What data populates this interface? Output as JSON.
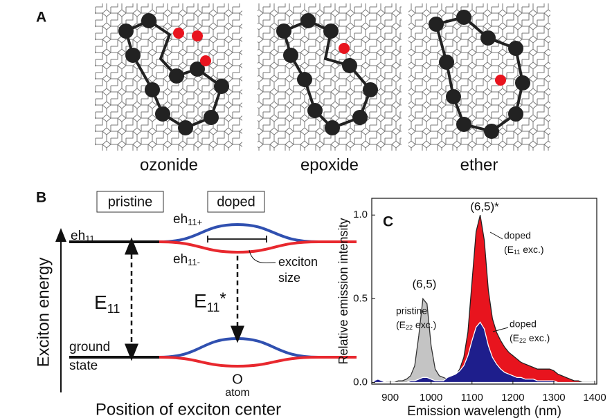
{
  "panel_a": {
    "label": "A",
    "captions": [
      "ozonide",
      "epoxide",
      "ether"
    ]
  },
  "panel_b": {
    "label": "B",
    "boxes": [
      "pristine",
      "doped"
    ],
    "y_axis_label": "Exciton energy",
    "x_axis_label": "Position of exciton center",
    "eh11": {
      "text": "eh",
      "sub": "11"
    },
    "eh11_plus": {
      "text": "eh",
      "sub": "11+"
    },
    "eh11_minus": {
      "text": "eh",
      "sub": "11-"
    },
    "exciton_size": [
      "exciton",
      "size"
    ],
    "e11": {
      "text": "E",
      "sub": "11"
    },
    "e11_star": {
      "text": "E",
      "sub": "11",
      "after": "*"
    },
    "ground_state": [
      "ground",
      "state"
    ],
    "o_atom": [
      "O",
      "atom"
    ]
  },
  "chart_data": {
    "type": "area",
    "panel_label": "C",
    "x_label": "Emission wavelength (nm)",
    "y_label": "Relative emission intensity",
    "xlim": [
      855,
      1405
    ],
    "ylim": [
      -0.01,
      1.1
    ],
    "xticks": [
      900,
      1000,
      1100,
      1200,
      1300,
      1400
    ],
    "yticks": [
      {
        "value": 0,
        "label": "0.0"
      },
      {
        "value": 0.5,
        "label": "0.5"
      },
      {
        "value": 1,
        "label": "1.0"
      }
    ],
    "x": [
      860,
      870,
      880,
      890,
      900,
      910,
      920,
      930,
      940,
      950,
      960,
      970,
      980,
      990,
      1000,
      1010,
      1020,
      1030,
      1040,
      1050,
      1060,
      1070,
      1080,
      1090,
      1100,
      1110,
      1120,
      1130,
      1140,
      1150,
      1160,
      1170,
      1180,
      1190,
      1200,
      1210,
      1220,
      1230,
      1240,
      1250,
      1260,
      1270,
      1280,
      1290,
      1300,
      1310,
      1320,
      1330,
      1340,
      1350,
      1360,
      1370,
      1380,
      1390,
      1400
    ],
    "series": [
      {
        "name": "pristine",
        "excitation": {
          "text": "(E",
          "sub": "22",
          "after": " exc.)"
        },
        "peak_label": "(6,5)",
        "color": "#c4c4c4",
        "edgecolor": "#333333",
        "values": [
          0,
          0,
          0,
          0,
          0,
          0,
          0.01,
          0.01,
          0.02,
          0.04,
          0.1,
          0.28,
          0.5,
          0.47,
          0.22,
          0.08,
          0.04,
          0.03,
          0.02,
          0.02,
          0.02,
          0.02,
          0.02,
          0.02,
          0.02,
          0.02,
          0.02,
          0.02,
          0.01,
          0.01,
          0.01,
          0.01,
          0.01,
          0.01,
          0.01,
          0.01,
          0.01,
          0.01,
          0.01,
          0.01,
          0,
          0,
          0,
          0,
          0,
          0,
          0,
          0,
          0,
          0,
          0,
          0,
          0,
          0,
          0
        ]
      },
      {
        "name": "doped",
        "excitation": {
          "text": "(E",
          "sub": "11",
          "after": " exc.)"
        },
        "peak_label": "(6,5)*",
        "peak_color": "#e8141e",
        "color": "#e8141e",
        "edgecolor": "#222222",
        "values": [
          0,
          0,
          0,
          0,
          0,
          0,
          0,
          0,
          0,
          0,
          0,
          0,
          0,
          0,
          0,
          0,
          0,
          0,
          0,
          0.02,
          0.04,
          0.08,
          0.15,
          0.3,
          0.6,
          0.9,
          1.0,
          0.85,
          0.55,
          0.38,
          0.3,
          0.25,
          0.21,
          0.18,
          0.16,
          0.14,
          0.12,
          0.11,
          0.1,
          0.09,
          0.08,
          0.08,
          0.08,
          0.08,
          0.07,
          0.05,
          0.04,
          0.03,
          0.02,
          0.01,
          0.01,
          0,
          0,
          0,
          0
        ]
      },
      {
        "name": "doped",
        "excitation": {
          "text": "(E",
          "sub": "22",
          "after": " exc.)"
        },
        "color": "#1e1e8c",
        "edgecolor": "#ffffff",
        "values": [
          0.01,
          0.02,
          0.01,
          0,
          0,
          0,
          0,
          0,
          0,
          0.01,
          0.01,
          0.02,
          0.03,
          0.03,
          0.02,
          0.01,
          0.01,
          0.01,
          0.03,
          0.04,
          0.05,
          0.07,
          0.1,
          0.16,
          0.25,
          0.33,
          0.36,
          0.32,
          0.22,
          0.15,
          0.11,
          0.08,
          0.06,
          0.05,
          0.04,
          0.03,
          0.03,
          0.02,
          0.02,
          0.02,
          0.01,
          0.01,
          0.01,
          0.01,
          0.01,
          0,
          0,
          0,
          0,
          0,
          0,
          0,
          0,
          0,
          0
        ]
      }
    ]
  }
}
